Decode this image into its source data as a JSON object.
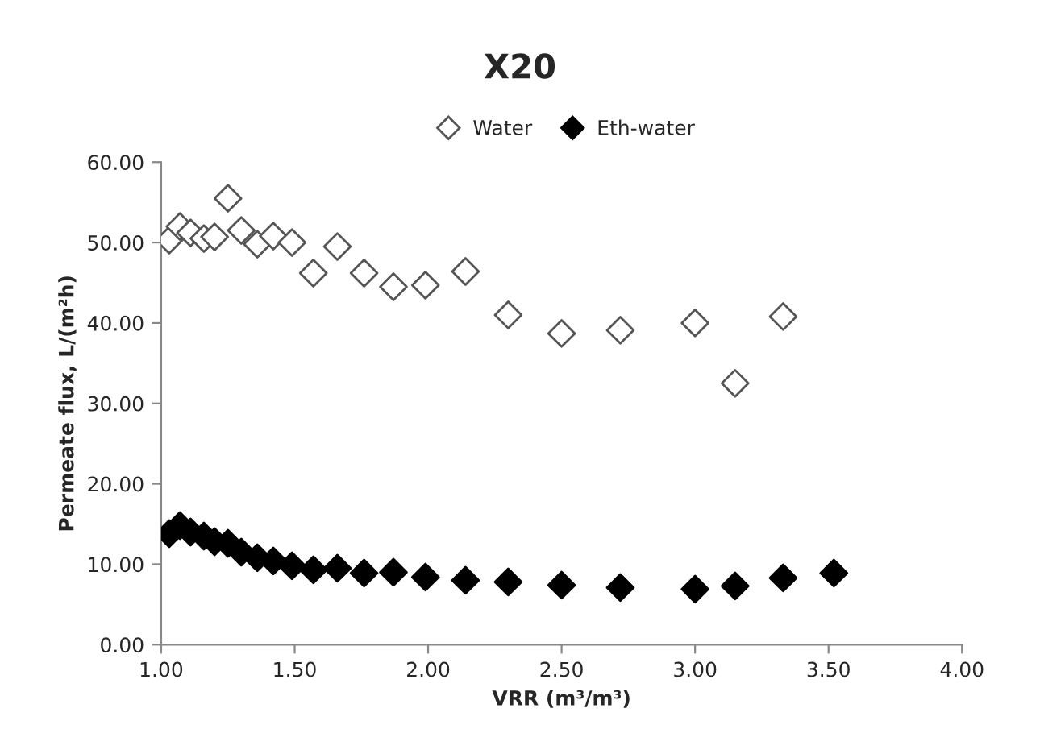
{
  "chart_data": {
    "type": "scatter",
    "title": "X20",
    "xlabel": "VRR (m³/m³)",
    "ylabel": "Permeate flux, L/(m²h)",
    "marker": "diamond",
    "legend": "top",
    "grid": false,
    "xlim": [
      1,
      4
    ],
    "ylim": [
      0,
      60
    ],
    "xticks": [
      {
        "value": 1,
        "label": "1.00"
      },
      {
        "value": 1.5,
        "label": "1.50"
      },
      {
        "value": 2,
        "label": "2.00"
      },
      {
        "value": 2.5,
        "label": "2.50"
      },
      {
        "value": 3,
        "label": "3.00"
      },
      {
        "value": 3.5,
        "label": "3.50"
      },
      {
        "value": 4,
        "label": "4.00"
      }
    ],
    "yticks": [
      {
        "value": 0,
        "label": "0.00"
      },
      {
        "value": 10,
        "label": "10.00"
      },
      {
        "value": 20,
        "label": "20.00"
      },
      {
        "value": 30,
        "label": "30.00"
      },
      {
        "value": 40,
        "label": "40.00"
      },
      {
        "value": 50,
        "label": "50.00"
      },
      {
        "value": 60,
        "label": "60.00"
      }
    ],
    "series": [
      {
        "name": "Water",
        "color": "#ffffff",
        "x": [
          1.03,
          1.07,
          1.11,
          1.16,
          1.2,
          1.25,
          1.3,
          1.36,
          1.42,
          1.49,
          1.57,
          1.66,
          1.76,
          1.87,
          1.99,
          2.14,
          2.3,
          2.5,
          2.72,
          3.0,
          3.15,
          3.33
        ],
        "values": [
          50.3,
          52.0,
          51.2,
          50.5,
          50.7,
          55.5,
          51.5,
          49.8,
          50.8,
          50.0,
          46.2,
          49.5,
          46.2,
          44.5,
          44.7,
          46.4,
          41.0,
          38.7,
          39.1,
          40.0,
          32.5,
          40.8
        ]
      },
      {
        "name": "Eth-water",
        "color": "#000000",
        "x": [
          1.03,
          1.07,
          1.11,
          1.16,
          1.2,
          1.25,
          1.3,
          1.36,
          1.42,
          1.49,
          1.57,
          1.66,
          1.76,
          1.87,
          1.99,
          2.14,
          2.3,
          2.5,
          2.72,
          3.0,
          3.15,
          3.33,
          3.52
        ],
        "values": [
          13.8,
          14.8,
          14.0,
          13.5,
          12.8,
          12.6,
          11.5,
          10.8,
          10.4,
          9.8,
          9.3,
          9.5,
          8.9,
          9.0,
          8.4,
          8.0,
          7.8,
          7.4,
          7.1,
          6.9,
          7.3,
          8.3,
          8.9
        ]
      }
    ]
  }
}
